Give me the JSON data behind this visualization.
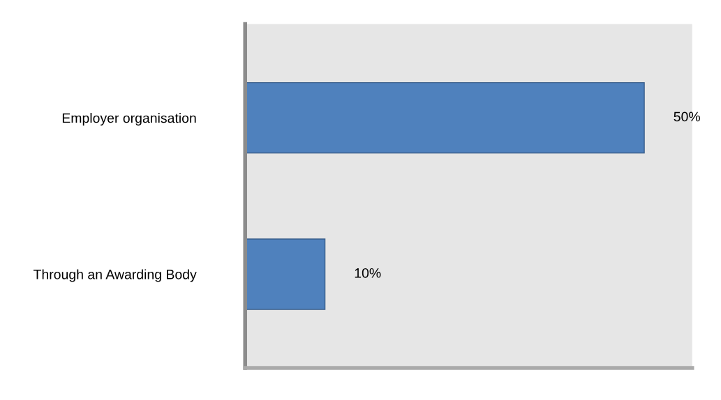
{
  "chart_data": {
    "type": "bar",
    "orientation": "horizontal",
    "categories": [
      "Employer organisation",
      "Through an Awarding Body"
    ],
    "values": [
      50,
      10
    ],
    "color": "#4f81bd",
    "value_labels": [
      "50%",
      "10%"
    ],
    "tick_labels": "y",
    "grid": false,
    "legend": false
  }
}
